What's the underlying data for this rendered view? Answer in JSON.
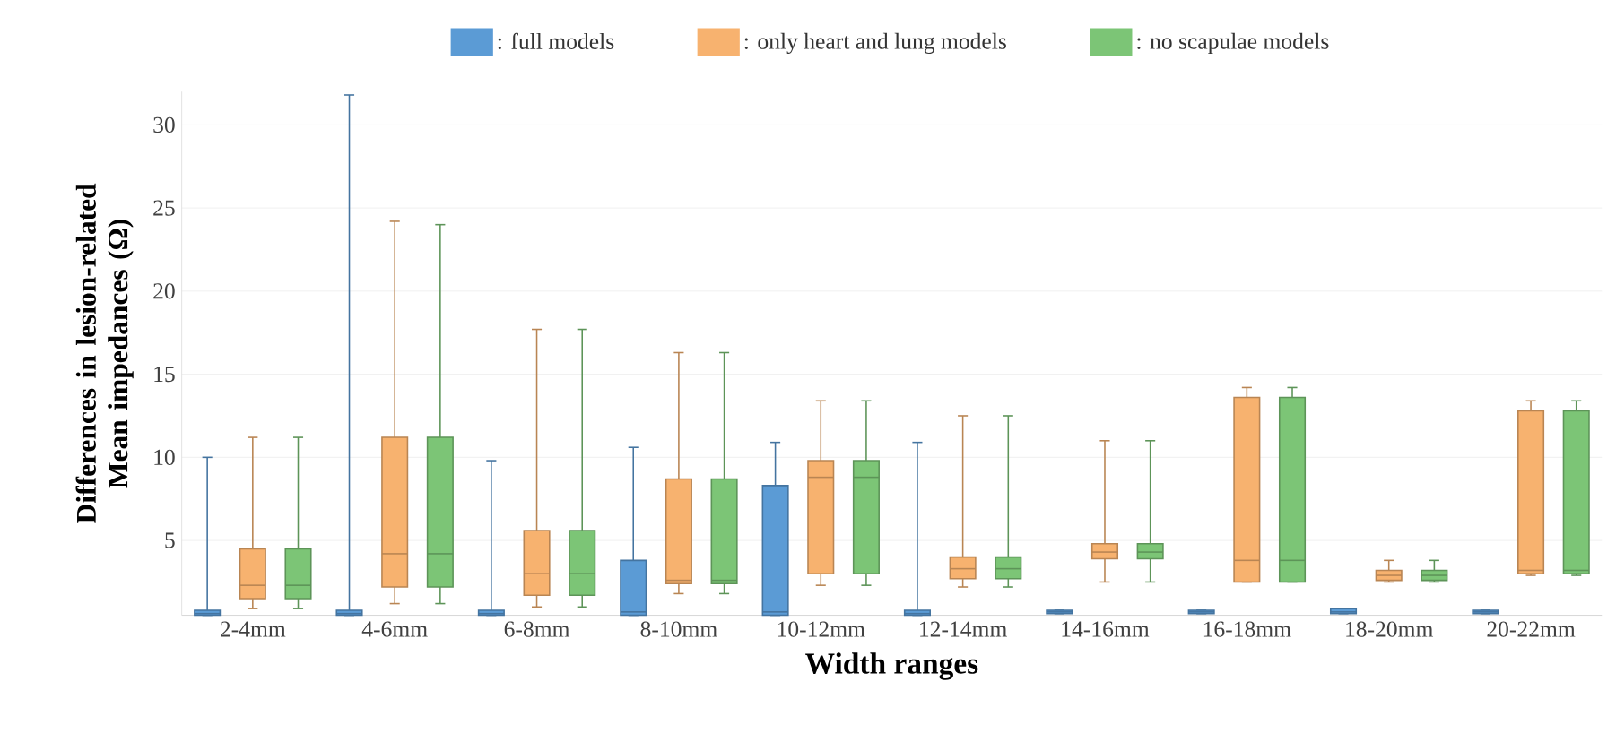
{
  "chart_data": {
    "type": "box",
    "xlabel": "Width ranges",
    "ylabel": "Differences in lesion-related Mean impedances (Ω)",
    "categories": [
      "2-4mm",
      "4-6mm",
      "6-8mm",
      "8-10mm",
      "10-12mm",
      "12-14mm",
      "14-16mm",
      "16-18mm",
      "18-20mm",
      "20-22mm"
    ],
    "ylim": [
      0.5,
      32
    ],
    "yticks": [
      5,
      10,
      15,
      20,
      25,
      30
    ],
    "grid": "y",
    "legend": "top",
    "series": [
      {
        "name": ": full models",
        "color": "#5b9bd5",
        "boxes": [
          {
            "low": 0.5,
            "q1": 0.5,
            "median": 0.6,
            "q3": 0.8,
            "high": 10
          },
          {
            "low": 0.5,
            "q1": 0.5,
            "median": 0.6,
            "q3": 0.8,
            "high": 31.8
          },
          {
            "low": 0.5,
            "q1": 0.5,
            "median": 0.6,
            "q3": 0.8,
            "high": 9.8
          },
          {
            "low": 0.5,
            "q1": 0.5,
            "median": 0.7,
            "q3": 3.8,
            "high": 10.6
          },
          {
            "low": 0.5,
            "q1": 0.5,
            "median": 0.7,
            "q3": 8.3,
            "high": 10.9
          },
          {
            "low": 0.5,
            "q1": 0.5,
            "median": 0.6,
            "q3": 0.8,
            "high": 10.9
          },
          {
            "low": 0.6,
            "q1": 0.6,
            "median": 0.7,
            "q3": 0.8,
            "high": 0.8
          },
          {
            "low": 0.6,
            "q1": 0.6,
            "median": 0.7,
            "q3": 0.8,
            "high": 0.8
          },
          {
            "low": 0.6,
            "q1": 0.6,
            "median": 0.7,
            "q3": 0.9,
            "high": 0.9
          },
          {
            "low": 0.6,
            "q1": 0.6,
            "median": 0.7,
            "q3": 0.8,
            "high": 0.8
          }
        ]
      },
      {
        "name": ": only heart and lung models",
        "color": "#f7b26f",
        "boxes": [
          {
            "low": 0.9,
            "q1": 1.5,
            "median": 2.3,
            "q3": 4.5,
            "high": 11.2
          },
          {
            "low": 1.2,
            "q1": 2.2,
            "median": 4.2,
            "q3": 11.2,
            "high": 24.2
          },
          {
            "low": 1.0,
            "q1": 1.7,
            "median": 3.0,
            "q3": 5.6,
            "high": 17.7
          },
          {
            "low": 1.8,
            "q1": 2.4,
            "median": 2.6,
            "q3": 8.7,
            "high": 16.3
          },
          {
            "low": 2.3,
            "q1": 3.0,
            "median": 8.8,
            "q3": 9.8,
            "high": 13.4
          },
          {
            "low": 2.2,
            "q1": 2.7,
            "median": 3.3,
            "q3": 4.0,
            "high": 12.5
          },
          {
            "low": 2.5,
            "q1": 3.9,
            "median": 4.3,
            "q3": 4.8,
            "high": 11
          },
          {
            "low": 2.5,
            "q1": 2.5,
            "median": 3.8,
            "q3": 13.6,
            "high": 14.2
          },
          {
            "low": 2.5,
            "q1": 2.6,
            "median": 2.9,
            "q3": 3.2,
            "high": 3.8
          },
          {
            "low": 2.9,
            "q1": 3.0,
            "median": 3.2,
            "q3": 12.8,
            "high": 13.4
          }
        ]
      },
      {
        "name": ": no scapulae models",
        "color": "#7cc576",
        "boxes": [
          {
            "low": 0.9,
            "q1": 1.5,
            "median": 2.3,
            "q3": 4.5,
            "high": 11.2
          },
          {
            "low": 1.2,
            "q1": 2.2,
            "median": 4.2,
            "q3": 11.2,
            "high": 24.0
          },
          {
            "low": 1.0,
            "q1": 1.7,
            "median": 3.0,
            "q3": 5.6,
            "high": 17.7
          },
          {
            "low": 1.8,
            "q1": 2.4,
            "median": 2.6,
            "q3": 8.7,
            "high": 16.3
          },
          {
            "low": 2.3,
            "q1": 3.0,
            "median": 8.8,
            "q3": 9.8,
            "high": 13.4
          },
          {
            "low": 2.2,
            "q1": 2.7,
            "median": 3.3,
            "q3": 4.0,
            "high": 12.5
          },
          {
            "low": 2.5,
            "q1": 3.9,
            "median": 4.3,
            "q3": 4.8,
            "high": 11
          },
          {
            "low": 2.5,
            "q1": 2.5,
            "median": 3.8,
            "q3": 13.6,
            "high": 14.2
          },
          {
            "low": 2.5,
            "q1": 2.6,
            "median": 2.9,
            "q3": 3.2,
            "high": 3.8
          },
          {
            "low": 2.9,
            "q1": 3.0,
            "median": 3.2,
            "q3": 12.8,
            "high": 13.4
          }
        ]
      }
    ]
  }
}
